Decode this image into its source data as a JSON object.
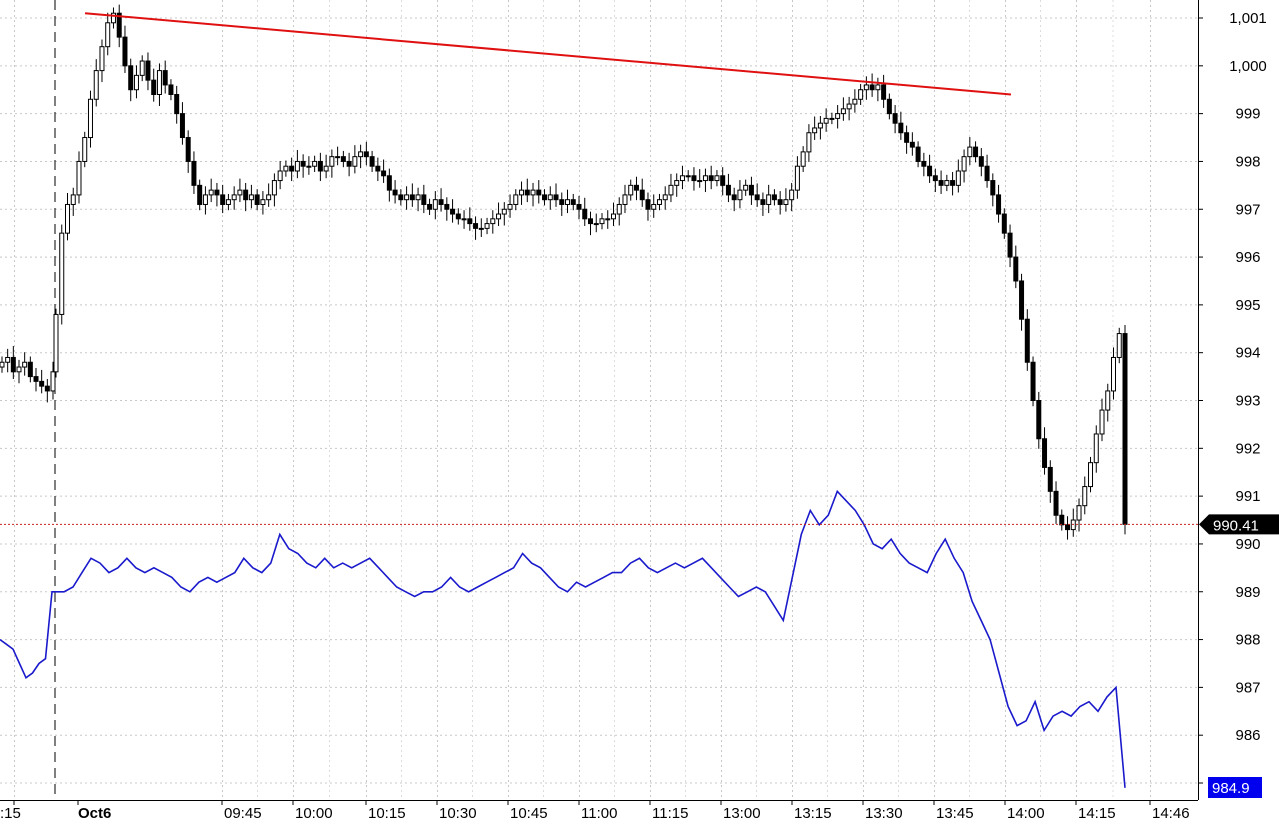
{
  "chart_data": {
    "type": "line",
    "title": "",
    "xlabel": "",
    "ylabel": "",
    "ylim": [
      984.6,
      1001.3
    ],
    "y_ticks": [
      "1,001",
      "1,000",
      "999",
      "998",
      "997",
      "996",
      "995",
      "994",
      "993",
      "992",
      "991",
      "990",
      "989",
      "988",
      "987",
      "986",
      "985"
    ],
    "y_tick_values": [
      1001,
      1000,
      999,
      998,
      997,
      996,
      995,
      994,
      993,
      992,
      991,
      990,
      989,
      988,
      987,
      986,
      985
    ],
    "x_ticks": [
      ":15",
      "Oct6",
      "09:45",
      "10:00",
      "10:15",
      "10:30",
      "10:45",
      "11:00",
      "11:15",
      "13:00",
      "13:15",
      "13:30",
      "13:45",
      "14:00",
      "14:15",
      "14:46"
    ],
    "x_tick_bold": [
      "Oct6"
    ],
    "grid": true,
    "session_break": "Oct6",
    "last_price": 990.41,
    "last_price_label": "990.41",
    "secondary_last_label": "984.9",
    "colors": {
      "candles": "#000000",
      "blue_line": "#1a1acc",
      "trendline": "#e01010",
      "price_line": "#cc2020",
      "badge_price": "#000000",
      "badge_blue": "#0000ee",
      "grid": "#c8c8c8"
    },
    "trendline": {
      "from": {
        "x": "Oct6",
        "y": 1001.1
      },
      "to": {
        "x": "14:00",
        "y": 999.4
      }
    },
    "candle_closes": [
      993.8,
      993.9,
      993.6,
      993.7,
      993.8,
      993.5,
      993.4,
      993.3,
      993.2,
      993.6,
      994.8,
      996.5,
      997.1,
      997.3,
      998.0,
      998.5,
      999.3,
      999.9,
      1000.4,
      1000.9,
      1001.1,
      1000.6,
      1000.0,
      999.5,
      999.8,
      1000.1,
      999.7,
      999.4,
      999.9,
      999.6,
      999.4,
      999.0,
      998.5,
      998.0,
      997.5,
      997.1,
      997.3,
      997.4,
      997.3,
      997.1,
      997.2,
      997.3,
      997.4,
      997.2,
      997.3,
      997.1,
      997.2,
      997.3,
      997.6,
      997.8,
      997.9,
      997.8,
      998.0,
      997.9,
      997.9,
      998.0,
      997.8,
      997.9,
      998.1,
      998.1,
      998.0,
      997.9,
      998.1,
      998.2,
      998.1,
      997.9,
      997.8,
      997.7,
      997.4,
      997.3,
      997.2,
      997.3,
      997.2,
      997.3,
      997.1,
      997.0,
      997.2,
      997.1,
      997.0,
      996.9,
      996.8,
      996.8,
      996.7,
      996.6,
      996.6,
      996.7,
      996.8,
      996.9,
      997.0,
      997.1,
      997.3,
      997.4,
      997.3,
      997.4,
      997.3,
      997.2,
      997.3,
      997.2,
      997.1,
      997.2,
      997.1,
      997.0,
      996.8,
      996.7,
      996.7,
      996.8,
      996.8,
      996.9,
      997.1,
      997.3,
      997.5,
      997.4,
      997.2,
      997.0,
      997.1,
      997.2,
      997.3,
      997.5,
      997.6,
      997.7,
      997.7,
      997.6,
      997.6,
      997.7,
      997.6,
      997.7,
      997.5,
      997.3,
      997.2,
      997.4,
      997.5,
      997.3,
      997.2,
      997.1,
      997.3,
      997.2,
      997.1,
      997.2,
      997.4,
      997.9,
      998.2,
      998.6,
      998.7,
      998.8,
      998.9,
      998.9,
      999.0,
      999.1,
      999.2,
      999.3,
      999.5,
      999.6,
      999.5,
      999.6,
      999.3,
      999.0,
      998.8,
      998.6,
      998.4,
      998.3,
      998.0,
      997.9,
      997.7,
      997.6,
      997.5,
      997.6,
      997.5,
      997.8,
      998.1,
      998.3,
      998.1,
      997.9,
      997.6,
      997.3,
      996.9,
      996.5,
      996.0,
      995.5,
      994.7,
      993.8,
      993.0,
      992.2,
      991.6,
      991.1,
      990.6,
      990.4,
      990.3,
      990.5,
      990.8,
      991.2,
      991.7,
      992.3,
      992.8,
      993.2,
      993.9,
      994.4,
      990.41
    ],
    "blue_values": [
      988.0,
      987.9,
      987.8,
      987.5,
      987.2,
      987.3,
      987.5,
      987.6,
      989.0,
      989.0,
      989.0,
      989.1,
      989.4,
      989.7,
      989.6,
      989.4,
      989.5,
      989.7,
      989.5,
      989.4,
      989.5,
      989.4,
      989.3,
      989.1,
      989.0,
      989.2,
      989.3,
      989.2,
      989.3,
      989.4,
      989.7,
      989.5,
      989.4,
      989.6,
      990.2,
      989.9,
      989.8,
      989.6,
      989.5,
      989.7,
      989.5,
      989.6,
      989.5,
      989.6,
      989.7,
      989.5,
      989.3,
      989.1,
      989.0,
      988.9,
      989.0,
      989.0,
      989.1,
      989.3,
      989.1,
      989.0,
      989.1,
      989.2,
      989.3,
      989.4,
      989.5,
      989.8,
      989.6,
      989.5,
      989.3,
      989.1,
      989.0,
      989.2,
      989.1,
      989.2,
      989.3,
      989.4,
      989.4,
      989.6,
      989.7,
      989.5,
      989.4,
      989.5,
      989.6,
      989.5,
      989.6,
      989.7,
      989.5,
      989.3,
      989.1,
      988.9,
      989.0,
      989.1,
      989.0,
      988.7,
      988.4,
      989.3,
      990.2,
      990.7,
      990.4,
      990.6,
      991.1,
      990.9,
      990.7,
      990.4,
      990.0,
      989.9,
      990.1,
      989.8,
      989.6,
      989.5,
      989.4,
      989.8,
      990.1,
      989.7,
      989.4,
      988.8,
      988.4,
      988.0,
      987.3,
      986.6,
      986.2,
      986.3,
      986.7,
      986.1,
      986.4,
      986.5,
      986.4,
      986.6,
      986.7,
      986.5,
      986.8,
      987.0,
      984.9
    ]
  }
}
